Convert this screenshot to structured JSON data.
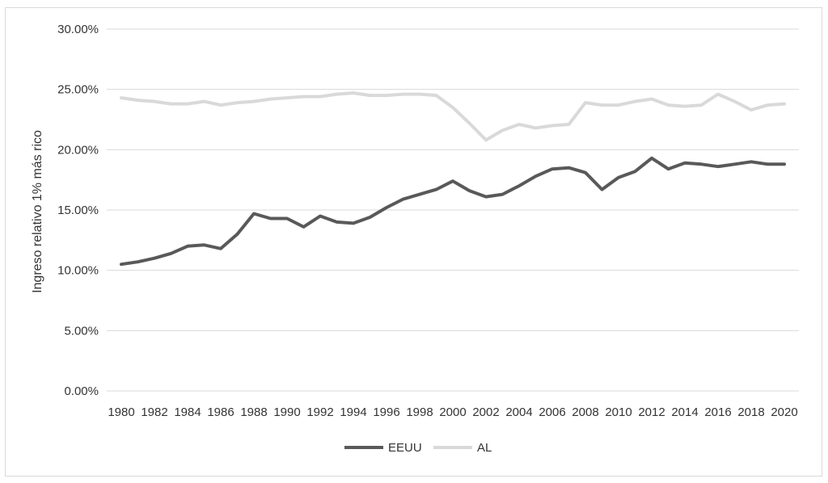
{
  "chart_data": {
    "type": "line",
    "title": "",
    "xlabel": "",
    "ylabel": "Ingreso relativo 1% más rico",
    "ylim": [
      0,
      0.3
    ],
    "yticks": [
      "0.00%",
      "5.00%",
      "10.00%",
      "15.00%",
      "20.00%",
      "25.00%",
      "30.00%"
    ],
    "xtick_labels": [
      "1980",
      "1982",
      "1984",
      "1986",
      "1988",
      "1990",
      "1992",
      "1994",
      "1996",
      "1998",
      "2000",
      "2002",
      "2004",
      "2006",
      "2008",
      "2010",
      "2012",
      "2014",
      "2016",
      "2018",
      "2020"
    ],
    "grid": "horizontal",
    "legend_position": "bottom",
    "x": [
      1980,
      1981,
      1982,
      1983,
      1984,
      1985,
      1986,
      1987,
      1988,
      1989,
      1990,
      1991,
      1992,
      1993,
      1994,
      1995,
      1996,
      1997,
      1998,
      1999,
      2000,
      2001,
      2002,
      2003,
      2004,
      2005,
      2006,
      2007,
      2008,
      2009,
      2010,
      2011,
      2012,
      2013,
      2014,
      2015,
      2016,
      2017,
      2018,
      2019,
      2020
    ],
    "series": [
      {
        "name": "EEUU",
        "color": "#595959",
        "values": [
          0.105,
          0.107,
          0.11,
          0.114,
          0.12,
          0.121,
          0.118,
          0.13,
          0.147,
          0.143,
          0.143,
          0.136,
          0.145,
          0.14,
          0.139,
          0.144,
          0.152,
          0.159,
          0.163,
          0.167,
          0.174,
          0.166,
          0.161,
          0.163,
          0.17,
          0.178,
          0.184,
          0.185,
          0.181,
          0.167,
          0.177,
          0.182,
          0.193,
          0.184,
          0.189,
          0.188,
          0.186,
          0.188,
          0.19,
          0.188,
          0.188
        ]
      },
      {
        "name": "AL",
        "color": "#d9d9d9",
        "values": [
          0.243,
          0.241,
          0.24,
          0.238,
          0.238,
          0.24,
          0.237,
          0.239,
          0.24,
          0.242,
          0.243,
          0.244,
          0.244,
          0.246,
          0.247,
          0.245,
          0.245,
          0.246,
          0.246,
          0.245,
          0.235,
          0.222,
          0.208,
          0.216,
          0.221,
          0.218,
          0.22,
          0.221,
          0.239,
          0.237,
          0.237,
          0.24,
          0.242,
          0.237,
          0.236,
          0.237,
          0.246,
          0.24,
          0.233,
          0.237,
          0.238
        ]
      }
    ]
  }
}
